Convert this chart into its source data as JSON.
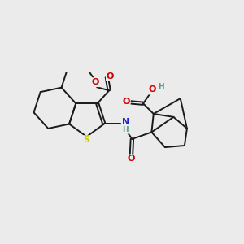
{
  "background_color": "#ebebeb",
  "atom_colors": {
    "C": "#1a1a1a",
    "O": "#cc0000",
    "N": "#2222cc",
    "S": "#cccc00",
    "H": "#4a9a9a"
  },
  "bond_color": "#1a1a1a",
  "bond_width": 1.4,
  "font_size": 7.0
}
